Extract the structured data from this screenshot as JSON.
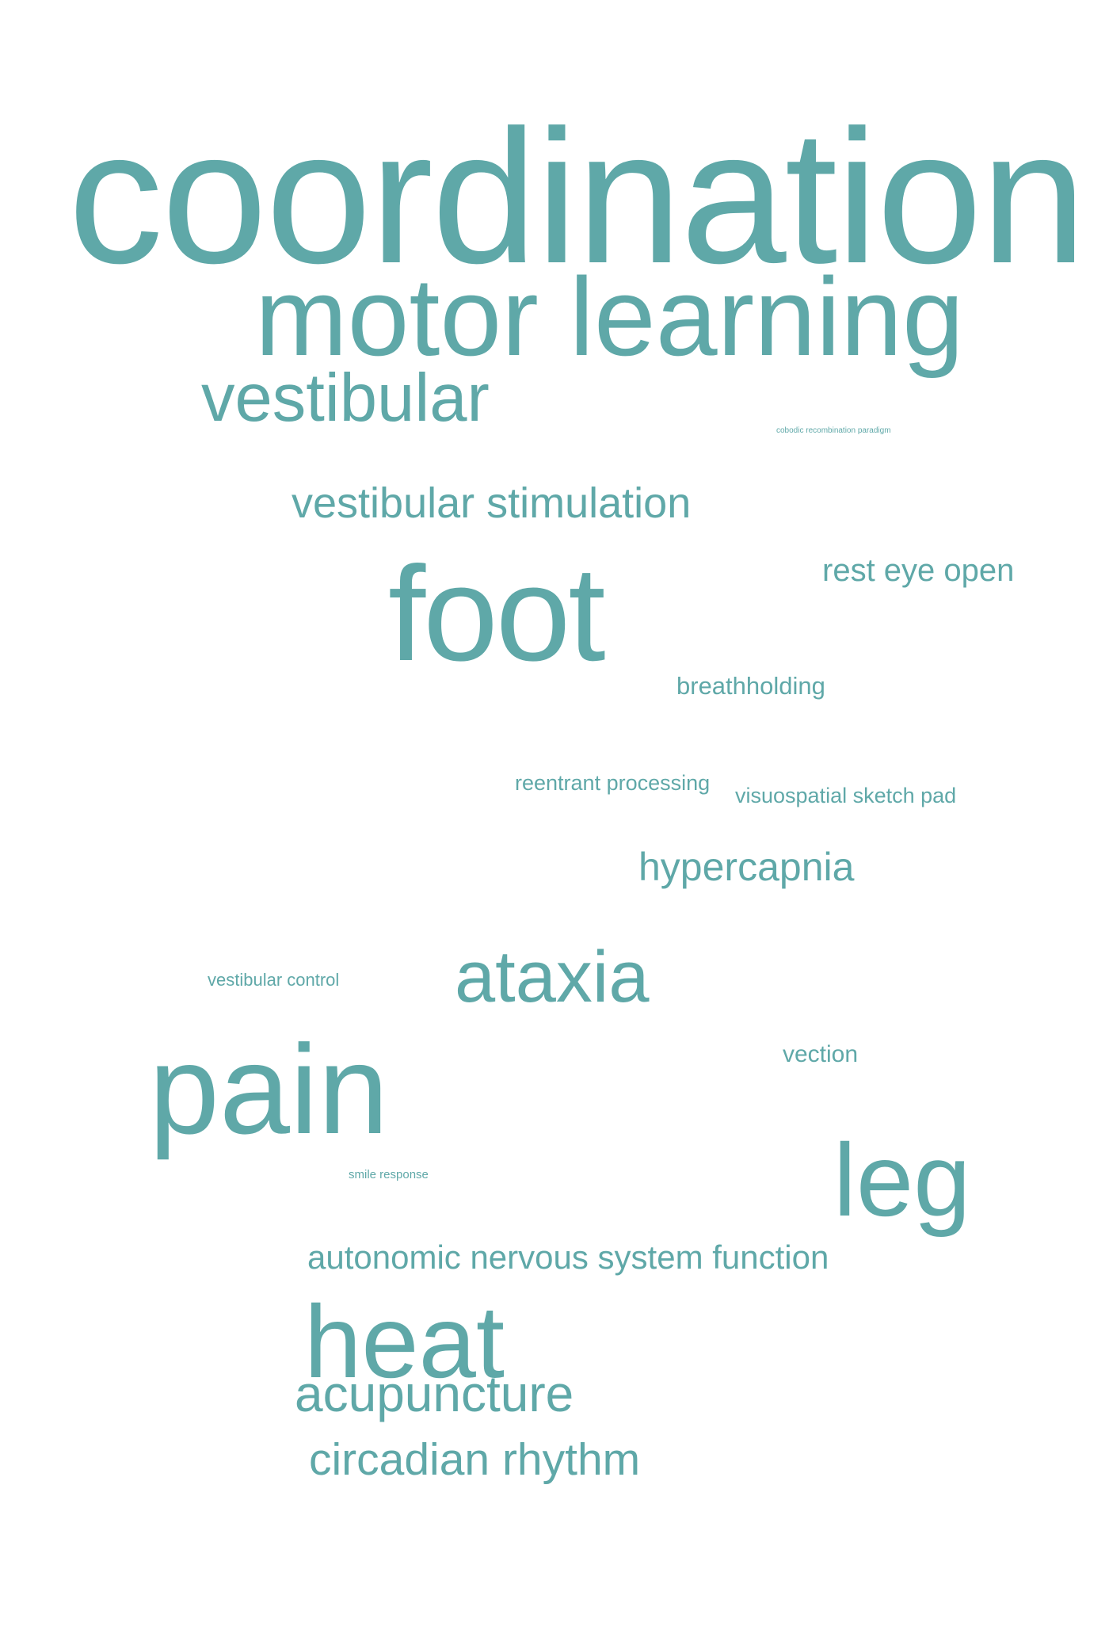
{
  "word_cloud": {
    "color": "#5fa8a8",
    "words": [
      {
        "id": "coordination",
        "text": "coordination"
      },
      {
        "id": "motor-learning",
        "text": "motor learning"
      },
      {
        "id": "vestibular",
        "text": "vestibular"
      },
      {
        "id": "cobodic-recombination-paradigm",
        "text": "cobodic recombination paradigm"
      },
      {
        "id": "vestibular-stimulation",
        "text": "vestibular stimulation"
      },
      {
        "id": "foot",
        "text": "foot"
      },
      {
        "id": "rest-eye-open",
        "text": "rest eye open"
      },
      {
        "id": "breathholding",
        "text": "breathholding"
      },
      {
        "id": "reentrant-processing",
        "text": "reentrant processing"
      },
      {
        "id": "visuospatial-sketch-pad",
        "text": "visuospatial sketch pad"
      },
      {
        "id": "hypercapnia",
        "text": "hypercapnia"
      },
      {
        "id": "ataxia",
        "text": "ataxia"
      },
      {
        "id": "vestibular-control",
        "text": "vestibular control"
      },
      {
        "id": "vection",
        "text": "vection"
      },
      {
        "id": "pain",
        "text": "pain"
      },
      {
        "id": "leg",
        "text": "leg"
      },
      {
        "id": "smile-response",
        "text": "smile response"
      },
      {
        "id": "autonomic-nervous-system-function",
        "text": "autonomic nervous system function"
      },
      {
        "id": "heat",
        "text": "heat"
      },
      {
        "id": "acupuncture",
        "text": "acupuncture"
      },
      {
        "id": "circadian-rhythm",
        "text": "circadian rhythm"
      }
    ]
  }
}
